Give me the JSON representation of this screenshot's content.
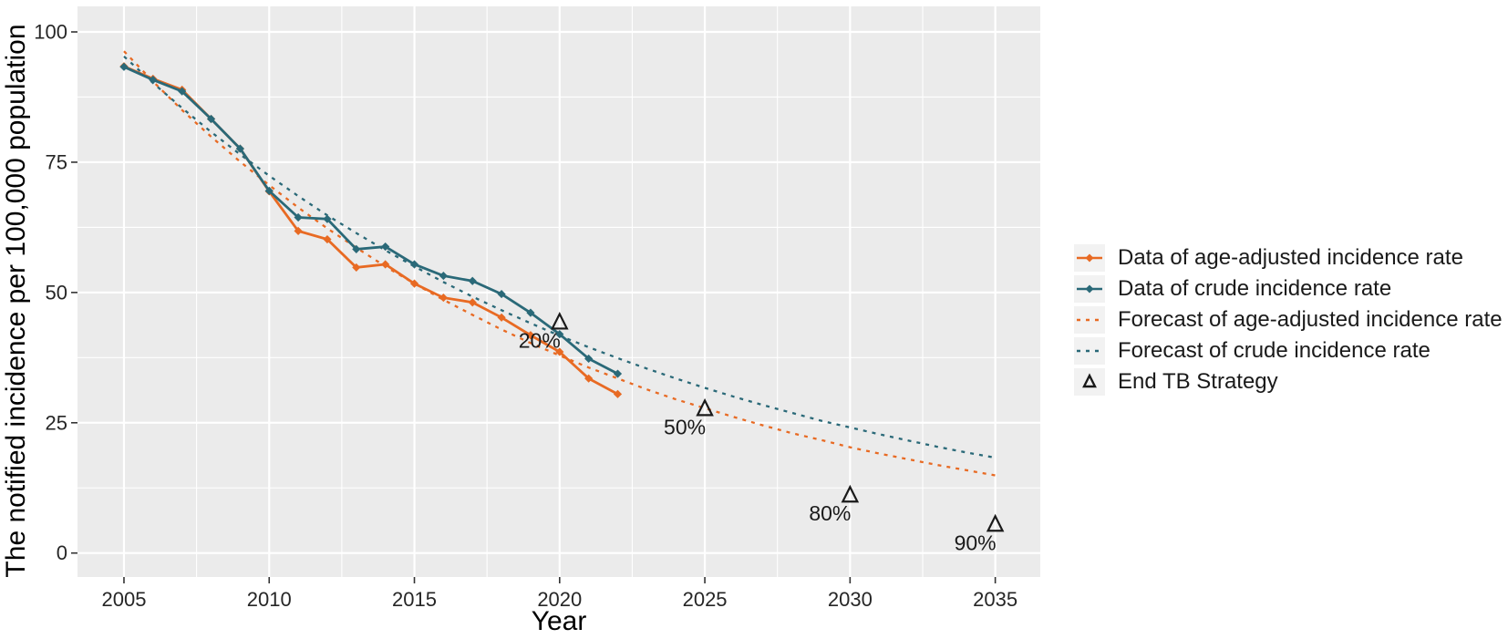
{
  "figure": {
    "background": "#ffffff"
  },
  "axis": {
    "tick_color": "#333333",
    "text_color": "#262626",
    "title_color": "#000000"
  },
  "annotation_color": "#1a1a1a",
  "chart_data": {
    "type": "line",
    "title": "",
    "xlabel": "Year",
    "ylabel": "The notified incidence per 100,000 population",
    "x_ticks": [
      2005,
      2010,
      2015,
      2020,
      2025,
      2030,
      2035
    ],
    "x_minor_ticks": [
      2007.5,
      2012.5,
      2017.5,
      2022.5,
      2027.5,
      2032.5
    ],
    "y_ticks": [
      0,
      25,
      50,
      75,
      100
    ],
    "y_minor_ticks": [
      12.5,
      37.5,
      62.5,
      87.5
    ],
    "xlim": [
      2003.4,
      2036.55
    ],
    "ylim": [
      -4.6,
      104.9
    ],
    "grid": {
      "major": true,
      "minor": true
    },
    "panel_bg": "#EBEBEB",
    "grid_color": "#FFFFFF",
    "legend_position": "right",
    "series": [
      {
        "name": "Data of age-adjusted incidence rate",
        "style": "solid",
        "marker": "diamond",
        "color": "#E86A23",
        "x": [
          2005,
          2006,
          2007,
          2008,
          2009,
          2010,
          2011,
          2012,
          2013,
          2014,
          2015,
          2016,
          2017,
          2018,
          2019,
          2020,
          2021,
          2022
        ],
        "values": [
          93.4,
          91.0,
          88.9,
          83.3,
          77.6,
          69.4,
          61.8,
          60.2,
          54.8,
          55.4,
          51.7,
          49.0,
          48.1,
          45.2,
          41.8,
          38.6,
          33.5,
          30.5
        ]
      },
      {
        "name": "Data of crude incidence rate",
        "style": "solid",
        "marker": "diamond",
        "color": "#2A6978",
        "x": [
          2005,
          2006,
          2007,
          2008,
          2009,
          2010,
          2011,
          2012,
          2013,
          2014,
          2015,
          2016,
          2017,
          2018,
          2019,
          2020,
          2021,
          2022
        ],
        "values": [
          93.3,
          90.8,
          88.6,
          83.3,
          77.6,
          69.5,
          64.4,
          64.1,
          58.3,
          58.8,
          55.4,
          53.2,
          52.2,
          49.7,
          46.1,
          42.0,
          37.3,
          34.4
        ]
      },
      {
        "name": "Forecast of age-adjusted incidence rate",
        "style": "dashed",
        "marker": "none",
        "color": "#E86A23",
        "x": [
          2005,
          2006,
          2007,
          2008,
          2009,
          2010,
          2011,
          2012,
          2013,
          2014,
          2015,
          2016,
          2017,
          2018,
          2019,
          2020,
          2021,
          2022,
          2023,
          2024,
          2025,
          2026,
          2027,
          2028,
          2029,
          2030,
          2031,
          2032,
          2033,
          2034,
          2035
        ],
        "values": [
          96.3,
          90.5,
          85.0,
          79.9,
          75.1,
          70.6,
          66.3,
          62.3,
          58.6,
          55.0,
          51.7,
          48.6,
          45.7,
          42.9,
          40.3,
          37.9,
          35.6,
          33.5,
          31.4,
          29.5,
          27.8,
          26.1,
          24.5,
          23.0,
          21.7,
          20.3,
          19.1,
          18.0,
          16.9,
          15.9,
          14.9
        ]
      },
      {
        "name": "Forecast of crude incidence rate",
        "style": "dashed",
        "marker": "none",
        "color": "#2A6978",
        "x": [
          2005,
          2006,
          2007,
          2008,
          2009,
          2010,
          2011,
          2012,
          2013,
          2014,
          2015,
          2016,
          2017,
          2018,
          2019,
          2020,
          2021,
          2022,
          2023,
          2024,
          2025,
          2026,
          2027,
          2028,
          2029,
          2030,
          2031,
          2032,
          2033,
          2034,
          2035
        ],
        "values": [
          95.3,
          90.2,
          85.4,
          80.8,
          76.5,
          72.4,
          68.5,
          64.8,
          61.4,
          58.1,
          55.0,
          52.0,
          49.2,
          46.6,
          44.1,
          41.7,
          39.5,
          37.4,
          35.4,
          33.5,
          31.7,
          30.0,
          28.4,
          26.9,
          25.4,
          24.1,
          22.8,
          21.6,
          20.4,
          19.3,
          18.3
        ]
      }
    ],
    "markers": {
      "name": "End TB Strategy",
      "shape": "open-triangle",
      "color": "#1a1a1a",
      "points": [
        {
          "x": 2020,
          "y": 44.3,
          "label": "20%"
        },
        {
          "x": 2025,
          "y": 27.7,
          "label": "50%"
        },
        {
          "x": 2030,
          "y": 11.1,
          "label": "80%"
        },
        {
          "x": 2035,
          "y": 5.5,
          "label": "90%"
        }
      ]
    }
  },
  "legend": {
    "items": [
      {
        "label": "Data of age-adjusted incidence rate",
        "key": "solid-point",
        "color": "#E86A23"
      },
      {
        "label": "Data of crude incidence rate",
        "key": "solid-point",
        "color": "#2A6978"
      },
      {
        "label": "Forecast of age-adjusted incidence rate",
        "key": "dashed",
        "color": "#E86A23"
      },
      {
        "label": "Forecast of crude incidence rate",
        "key": "dashed",
        "color": "#2A6978"
      },
      {
        "label": "End TB Strategy",
        "key": "triangle",
        "color": "#1a1a1a"
      }
    ],
    "key_bg": "#F2F2F2"
  }
}
